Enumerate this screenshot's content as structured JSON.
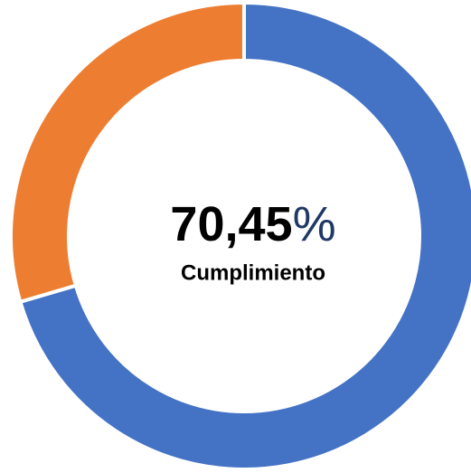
{
  "chart_data": {
    "type": "donut",
    "categories": [
      null,
      null
    ],
    "values": [
      70.45,
      29.55
    ],
    "value_labels": [
      "70,45%",
      null
    ],
    "colors": [
      "#4472c4",
      "#ed7d31"
    ],
    "center_caption": "Cumplimiento"
  }
}
